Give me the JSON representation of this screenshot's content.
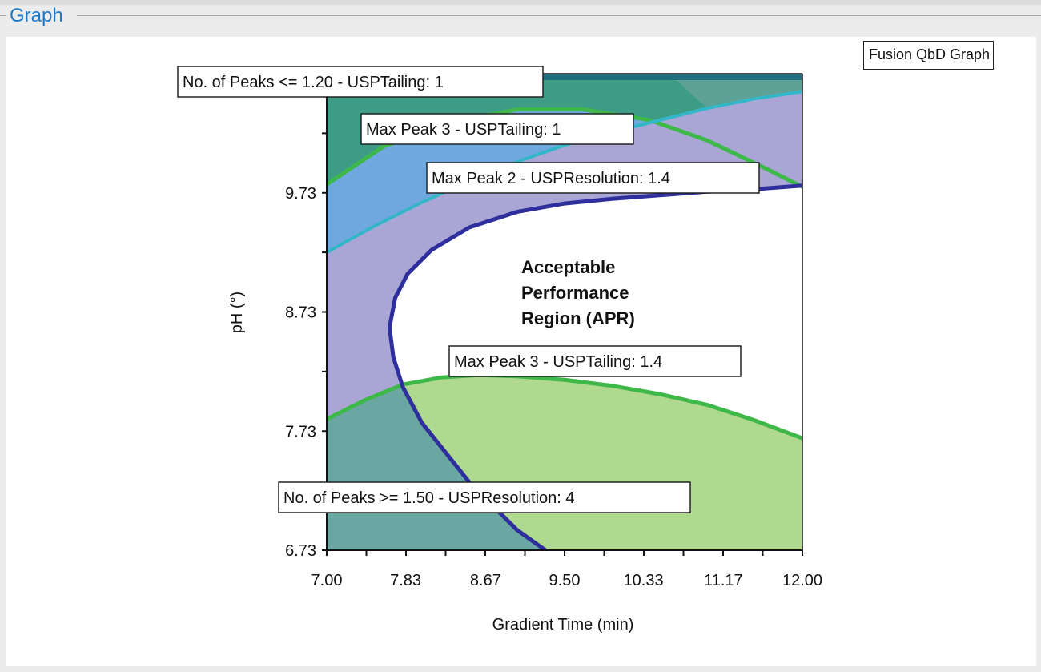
{
  "window": {
    "group_title": "Graph",
    "badge": "Fusion QbD Graph"
  },
  "colors": {
    "top_region": "#3c9c86",
    "blue_region": "#6fa8de",
    "purple_region": "#a9a6d6",
    "apr_region": "#ffffff",
    "green_region": "#b0d990",
    "overlap_region": "#6aa6a2",
    "dark_band": "#1f6f7e",
    "green_line": "#3fb84a",
    "cyan_line": "#33b7c8",
    "navy_line": "#2e2f9c"
  },
  "chart_data": {
    "type": "contour",
    "xlabel": "Gradient Time (min)",
    "ylabel": "pH (°)",
    "xlim": [
      7.0,
      12.0
    ],
    "ylim": [
      6.73,
      10.73
    ],
    "x_ticks": [
      "7.00",
      "7.83",
      "8.67",
      "9.50",
      "10.33",
      "11.17",
      "12.00"
    ],
    "y_ticks": [
      "6.73",
      "7.73",
      "8.73",
      "9.73"
    ],
    "region_label": [
      "Acceptable",
      "Performance",
      "Region (APR)"
    ],
    "labels": [
      "No. of Peaks <= 1.20 - USPTailing: 1",
      "Max Peak 3 - USPTailing: 1",
      "Max Peak 2 - USPResolution: 1.4",
      "Max Peak 3 - USPTailing: 1.4",
      "No. of Peaks >= 1.50 - USPResolution: 4"
    ],
    "curves": {
      "tailing_1": {
        "x": [
          7.0,
          7.6,
          8.3,
          9.0,
          9.7,
          10.4,
          11.0,
          11.6,
          12.0
        ],
        "y": [
          9.8,
          10.12,
          10.32,
          10.43,
          10.43,
          10.34,
          10.17,
          9.94,
          9.78
        ]
      },
      "resolution_1_4": {
        "x": [
          7.0,
          7.5,
          8.0,
          8.5,
          9.0,
          9.5,
          10.0,
          10.5,
          11.0,
          11.5,
          12.0
        ],
        "y": [
          9.23,
          9.45,
          9.65,
          9.83,
          9.99,
          10.13,
          10.24,
          10.34,
          10.44,
          10.52,
          10.58
        ]
      },
      "tailing_1_4": {
        "x": [
          7.0,
          7.4,
          7.8,
          8.2,
          8.6,
          9.0,
          9.5,
          10.0,
          10.5,
          11.0,
          11.5,
          12.0
        ],
        "y": [
          7.83,
          7.99,
          8.12,
          8.18,
          8.2,
          8.19,
          8.16,
          8.11,
          8.04,
          7.95,
          7.82,
          7.67
        ]
      },
      "resolution_4": {
        "x": [
          9.3,
          9.0,
          8.5,
          8.0,
          7.8,
          7.7,
          7.66,
          7.72,
          7.85,
          8.1,
          8.5,
          9.0,
          9.5,
          10.0,
          10.5,
          11.0,
          11.5,
          12.0
        ],
        "y": [
          6.73,
          6.9,
          7.3,
          7.8,
          8.1,
          8.35,
          8.6,
          8.85,
          9.05,
          9.25,
          9.44,
          9.57,
          9.64,
          9.68,
          9.71,
          9.74,
          9.76,
          9.79
        ]
      }
    }
  }
}
